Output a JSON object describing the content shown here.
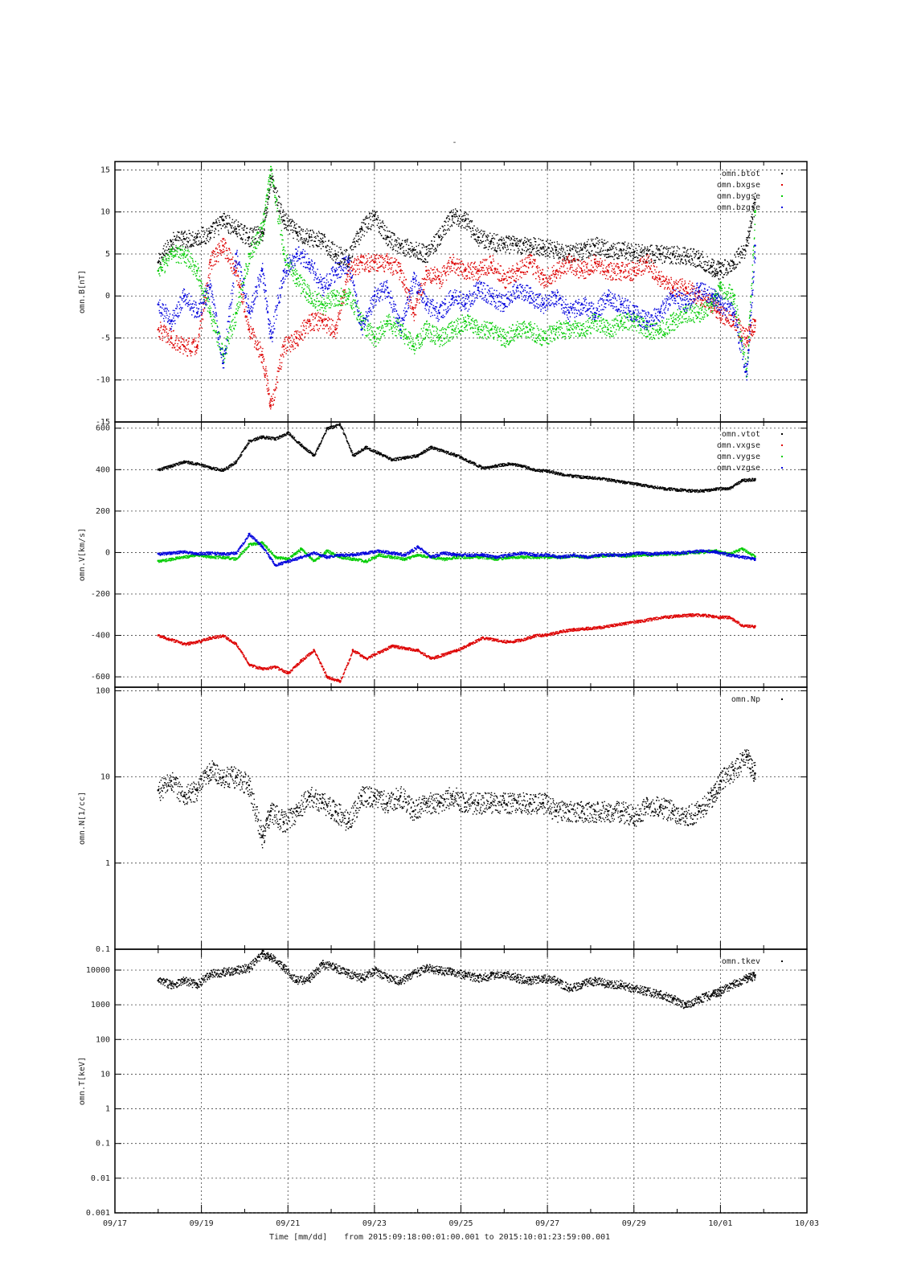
{
  "figure_title": "-",
  "time_axis": {
    "label": "Time [mm/dd]",
    "range_note": "from 2015:09:18:00:01:00.001  to  2015:10:01:23:59:00.001",
    "ticks": [
      "09/17",
      "09/19",
      "09/21",
      "09/23",
      "09/25",
      "09/27",
      "09/29",
      "10/01",
      "10/03"
    ]
  },
  "chart_data": [
    {
      "type": "scatter",
      "ylabel": "omn.B[nT]",
      "scale": "linear",
      "ylim": [
        -15,
        16
      ],
      "yticks": [
        "-15",
        "-10",
        "-5",
        "0",
        "5",
        "10",
        "15"
      ],
      "x_unit": "days since 09/17",
      "grid": true,
      "legend_position": "top-right",
      "series": [
        {
          "name": "omn.btot",
          "color": "#000000",
          "x": [
            1.0,
            1.3,
            1.6,
            1.9,
            2.2,
            2.5,
            2.8,
            3.1,
            3.4,
            3.6,
            3.9,
            4.2,
            4.5,
            4.8,
            5.1,
            5.4,
            5.7,
            6.0,
            6.3,
            6.6,
            6.9,
            7.2,
            7.5,
            7.8,
            8.1,
            8.4,
            8.7,
            9.0,
            9.3,
            9.6,
            9.9,
            10.2,
            10.5,
            10.8,
            11.1,
            11.4,
            11.7,
            12.0,
            12.3,
            12.6,
            12.9,
            13.2,
            13.5,
            13.8,
            14.0,
            14.3,
            14.6,
            14.8
          ],
          "y": [
            4,
            6.5,
            6.8,
            7,
            7.5,
            9,
            8,
            7,
            7.5,
            14,
            9,
            7.5,
            7,
            6.5,
            5,
            4.5,
            8,
            9.5,
            7,
            6,
            5.5,
            5,
            7,
            9.5,
            9,
            7,
            6.5,
            6.2,
            6,
            6,
            5.8,
            5.5,
            5,
            5.5,
            6,
            5.5,
            5.5,
            5.2,
            5,
            5,
            5,
            4.8,
            4.5,
            3.5,
            3,
            4,
            6,
            11.5
          ]
        },
        {
          "name": "omn.bxgse",
          "color": "#dd0000",
          "x": [
            1.0,
            1.3,
            1.6,
            1.9,
            2.2,
            2.5,
            2.8,
            3.1,
            3.4,
            3.6,
            3.9,
            4.2,
            4.5,
            4.8,
            5.1,
            5.4,
            5.7,
            6.0,
            6.3,
            6.6,
            6.9,
            7.2,
            7.5,
            7.8,
            8.1,
            8.4,
            8.7,
            9.0,
            9.3,
            9.6,
            9.9,
            10.2,
            10.5,
            10.8,
            11.1,
            11.4,
            11.7,
            12.0,
            12.3,
            12.6,
            12.9,
            13.2,
            13.5,
            13.8,
            14.0,
            14.3,
            14.6,
            14.8
          ],
          "y": [
            -4,
            -5,
            -6,
            -6,
            4,
            6,
            3,
            -4,
            -7,
            -13,
            -6,
            -5,
            -3,
            -3,
            -4,
            3,
            4,
            4,
            4,
            3,
            -2,
            3,
            2,
            4,
            3,
            3,
            4,
            2,
            3,
            4,
            2,
            3,
            4,
            3,
            4,
            3,
            3,
            3,
            4,
            2,
            1,
            1,
            0,
            -1,
            -2,
            -3,
            -5,
            -3
          ]
        },
        {
          "name": "omn.bygse",
          "color": "#00cc00",
          "x": [
            1.0,
            1.3,
            1.6,
            1.9,
            2.2,
            2.5,
            2.8,
            3.1,
            3.4,
            3.6,
            3.9,
            4.2,
            4.5,
            4.8,
            5.1,
            5.4,
            5.7,
            6.0,
            6.3,
            6.6,
            6.9,
            7.2,
            7.5,
            7.8,
            8.1,
            8.4,
            8.7,
            9.0,
            9.3,
            9.6,
            9.9,
            10.2,
            10.5,
            10.8,
            11.1,
            11.4,
            11.7,
            12.0,
            12.3,
            12.6,
            12.9,
            13.2,
            13.5,
            13.8,
            14.0,
            14.3,
            14.6,
            14.8
          ],
          "y": [
            3,
            5,
            5,
            3,
            -2,
            -7,
            -2,
            5,
            8,
            15,
            5,
            2,
            0,
            -1,
            0,
            0,
            -3,
            -5,
            -3,
            -4,
            -6,
            -4,
            -5,
            -4,
            -3,
            -4,
            -4,
            -5,
            -4,
            -4,
            -5,
            -4,
            -4,
            -4,
            -3,
            -4,
            -3,
            -3,
            -4,
            -4,
            -3,
            -2,
            -2,
            -1,
            1,
            0,
            -9,
            10
          ]
        },
        {
          "name": "omn.bzgse",
          "color": "#0000dd",
          "x": [
            1.0,
            1.3,
            1.6,
            1.9,
            2.2,
            2.5,
            2.8,
            3.1,
            3.4,
            3.6,
            3.9,
            4.2,
            4.5,
            4.8,
            5.1,
            5.4,
            5.7,
            6.0,
            6.3,
            6.6,
            6.9,
            7.2,
            7.5,
            7.8,
            8.1,
            8.4,
            8.7,
            9.0,
            9.3,
            9.6,
            9.9,
            10.2,
            10.5,
            10.8,
            11.1,
            11.4,
            11.7,
            12.0,
            12.3,
            12.6,
            12.9,
            13.2,
            13.5,
            13.8,
            14.0,
            14.3,
            14.6,
            14.8
          ],
          "y": [
            -1,
            -3,
            0,
            -2,
            1,
            -8,
            5,
            -2,
            3,
            -5,
            3,
            5,
            4,
            1,
            3,
            4,
            -4,
            0,
            1,
            -4,
            2,
            -1,
            -2,
            0,
            -1,
            1,
            0,
            -1,
            1,
            0,
            -1,
            0,
            -2,
            -1,
            -2,
            0,
            -1,
            -2,
            -3,
            -2,
            0,
            -1,
            1,
            0,
            -1,
            -2,
            -9,
            6
          ]
        }
      ]
    },
    {
      "type": "scatter",
      "ylabel": "omn.V[km/s]",
      "scale": "linear",
      "ylim": [
        -650,
        630
      ],
      "yticks": [
        "-600",
        "-400",
        "-200",
        "0",
        "200",
        "400",
        "600"
      ],
      "x_unit": "days since 09/17",
      "grid": true,
      "legend_position": "top-right",
      "series": [
        {
          "name": "omn.vtot",
          "color": "#000000",
          "x": [
            1.0,
            1.3,
            1.6,
            1.9,
            2.2,
            2.5,
            2.8,
            3.1,
            3.4,
            3.7,
            4.0,
            4.3,
            4.6,
            4.9,
            5.2,
            5.5,
            5.8,
            6.1,
            6.4,
            6.7,
            7.0,
            7.3,
            7.6,
            7.9,
            8.2,
            8.5,
            8.8,
            9.1,
            9.4,
            9.7,
            10.0,
            10.3,
            10.6,
            10.9,
            11.2,
            11.5,
            11.8,
            12.1,
            12.4,
            12.7,
            13.0,
            13.3,
            13.6,
            13.9,
            14.2,
            14.5,
            14.8
          ],
          "y": [
            400,
            420,
            440,
            430,
            410,
            400,
            440,
            540,
            560,
            550,
            580,
            520,
            470,
            600,
            620,
            470,
            510,
            480,
            450,
            460,
            470,
            510,
            490,
            470,
            440,
            410,
            420,
            430,
            420,
            400,
            395,
            380,
            370,
            365,
            360,
            350,
            340,
            330,
            320,
            310,
            305,
            300,
            300,
            310,
            310,
            350,
            355
          ]
        },
        {
          "name": "omn.vxgse",
          "color": "#dd0000",
          "x": [
            1.0,
            1.3,
            1.6,
            1.9,
            2.2,
            2.5,
            2.8,
            3.1,
            3.4,
            3.7,
            4.0,
            4.3,
            4.6,
            4.9,
            5.2,
            5.5,
            5.8,
            6.1,
            6.4,
            6.7,
            7.0,
            7.3,
            7.6,
            7.9,
            8.2,
            8.5,
            8.8,
            9.1,
            9.4,
            9.7,
            10.0,
            10.3,
            10.6,
            10.9,
            11.2,
            11.5,
            11.8,
            12.1,
            12.4,
            12.7,
            13.0,
            13.3,
            13.6,
            13.9,
            14.2,
            14.5,
            14.8
          ],
          "y": [
            -400,
            -420,
            -440,
            -430,
            -410,
            -400,
            -440,
            -540,
            -560,
            -550,
            -580,
            -520,
            -470,
            -600,
            -620,
            -470,
            -510,
            -480,
            -450,
            -460,
            -470,
            -510,
            -490,
            -470,
            -440,
            -410,
            -420,
            -430,
            -420,
            -400,
            -395,
            -380,
            -370,
            -365,
            -360,
            -350,
            -340,
            -330,
            -320,
            -310,
            -305,
            -300,
            -300,
            -310,
            -310,
            -350,
            -355
          ]
        },
        {
          "name": "omn.vygse",
          "color": "#00cc00",
          "x": [
            1.0,
            1.3,
            1.6,
            1.9,
            2.2,
            2.5,
            2.8,
            3.1,
            3.4,
            3.7,
            4.0,
            4.3,
            4.6,
            4.9,
            5.2,
            5.5,
            5.8,
            6.1,
            6.4,
            6.7,
            7.0,
            7.3,
            7.6,
            7.9,
            8.2,
            8.5,
            8.8,
            9.1,
            9.4,
            9.7,
            10.0,
            10.3,
            10.6,
            10.9,
            11.2,
            11.5,
            11.8,
            12.1,
            12.4,
            12.7,
            13.0,
            13.3,
            13.6,
            13.9,
            14.2,
            14.5,
            14.8
          ],
          "y": [
            -40,
            -30,
            -20,
            -10,
            -20,
            -20,
            -30,
            40,
            50,
            -20,
            -30,
            20,
            -40,
            10,
            -20,
            -30,
            -40,
            -10,
            -20,
            -30,
            -10,
            -20,
            -30,
            -20,
            -20,
            -20,
            -30,
            -20,
            -20,
            -20,
            -20,
            -20,
            -15,
            -20,
            -15,
            -10,
            -15,
            -10,
            -10,
            -5,
            -5,
            0,
            5,
            10,
            -5,
            20,
            -20
          ]
        },
        {
          "name": "omn.vzgse",
          "color": "#0000dd",
          "x": [
            1.0,
            1.3,
            1.6,
            1.9,
            2.2,
            2.5,
            2.8,
            3.1,
            3.4,
            3.7,
            4.0,
            4.3,
            4.6,
            4.9,
            5.2,
            5.5,
            5.8,
            6.1,
            6.4,
            6.7,
            7.0,
            7.3,
            7.6,
            7.9,
            8.2,
            8.5,
            8.8,
            9.1,
            9.4,
            9.7,
            10.0,
            10.3,
            10.6,
            10.9,
            11.2,
            11.5,
            11.8,
            12.1,
            12.4,
            12.7,
            13.0,
            13.3,
            13.6,
            13.9,
            14.2,
            14.5,
            14.8
          ],
          "y": [
            -5,
            0,
            5,
            -5,
            0,
            -5,
            0,
            90,
            30,
            -60,
            -40,
            -20,
            0,
            -20,
            -10,
            -10,
            0,
            10,
            0,
            -10,
            30,
            -20,
            0,
            -10,
            -10,
            -10,
            -20,
            -10,
            0,
            -10,
            -10,
            -20,
            -10,
            -20,
            -10,
            -10,
            -10,
            0,
            -5,
            0,
            0,
            5,
            10,
            5,
            -10,
            -20,
            -30
          ]
        }
      ]
    },
    {
      "type": "scatter",
      "ylabel": "omn.N[1/cc]",
      "scale": "log",
      "ylim": [
        0.1,
        110
      ],
      "yticks": [
        "0.1",
        "1",
        "10",
        "100"
      ],
      "x_unit": "days since 09/17",
      "grid": true,
      "legend_position": "top-right",
      "series": [
        {
          "name": "omn.Np",
          "color": "#000000",
          "x": [
            1.0,
            1.3,
            1.6,
            1.9,
            2.2,
            2.5,
            2.8,
            3.1,
            3.4,
            3.6,
            3.9,
            4.2,
            4.5,
            4.8,
            5.1,
            5.4,
            5.7,
            6.0,
            6.3,
            6.6,
            6.9,
            7.2,
            7.5,
            7.8,
            8.1,
            8.4,
            8.7,
            9.0,
            9.3,
            9.6,
            9.9,
            10.2,
            10.5,
            10.8,
            11.1,
            11.4,
            11.7,
            12.0,
            12.3,
            12.6,
            12.9,
            13.2,
            13.5,
            13.8,
            14.0,
            14.3,
            14.6,
            14.8
          ],
          "y": [
            7,
            9,
            6,
            7,
            12,
            10,
            10,
            8,
            2,
            4,
            3,
            4,
            6,
            5,
            4,
            3,
            6,
            6,
            5,
            6,
            4,
            5,
            5,
            6,
            5,
            5,
            5,
            5,
            5,
            5,
            5,
            4,
            4,
            4,
            4,
            4,
            4,
            3.5,
            4.5,
            4.5,
            4,
            3.5,
            4,
            6,
            9,
            12,
            17,
            11
          ]
        }
      ]
    },
    {
      "type": "scatter",
      "ylabel": "omn.T[keV]",
      "scale": "log",
      "ylim": [
        0.001,
        40000
      ],
      "yticks": [
        "0.001",
        "0.01",
        "0.1",
        "1",
        "10",
        "100",
        "1000",
        "10000"
      ],
      "x_unit": "days since 09/17",
      "grid": true,
      "legend_position": "top-right",
      "series": [
        {
          "name": "omn.tkev",
          "color": "#000000",
          "x": [
            1.0,
            1.3,
            1.6,
            1.9,
            2.2,
            2.5,
            2.8,
            3.1,
            3.4,
            3.6,
            3.9,
            4.2,
            4.5,
            4.8,
            5.1,
            5.4,
            5.7,
            6.0,
            6.3,
            6.6,
            6.9,
            7.2,
            7.5,
            7.8,
            8.1,
            8.4,
            8.7,
            9.0,
            9.3,
            9.6,
            9.9,
            10.2,
            10.5,
            10.8,
            11.1,
            11.4,
            11.7,
            12.0,
            12.3,
            12.6,
            12.9,
            13.2,
            13.5,
            13.8,
            14.0,
            14.3,
            14.6,
            14.8
          ],
          "y": [
            5000,
            4000,
            5000,
            4000,
            8000,
            9000,
            10000,
            12000,
            30000,
            25000,
            12000,
            5000,
            6000,
            15000,
            12000,
            8000,
            6000,
            10000,
            6000,
            5000,
            8000,
            12000,
            10000,
            9000,
            7000,
            6000,
            7000,
            8000,
            6000,
            5000,
            6000,
            5000,
            3000,
            4000,
            5000,
            4000,
            4000,
            3000,
            2500,
            2000,
            1500,
            1000,
            1500,
            2000,
            2500,
            4000,
            6000,
            7000
          ]
        }
      ]
    }
  ]
}
